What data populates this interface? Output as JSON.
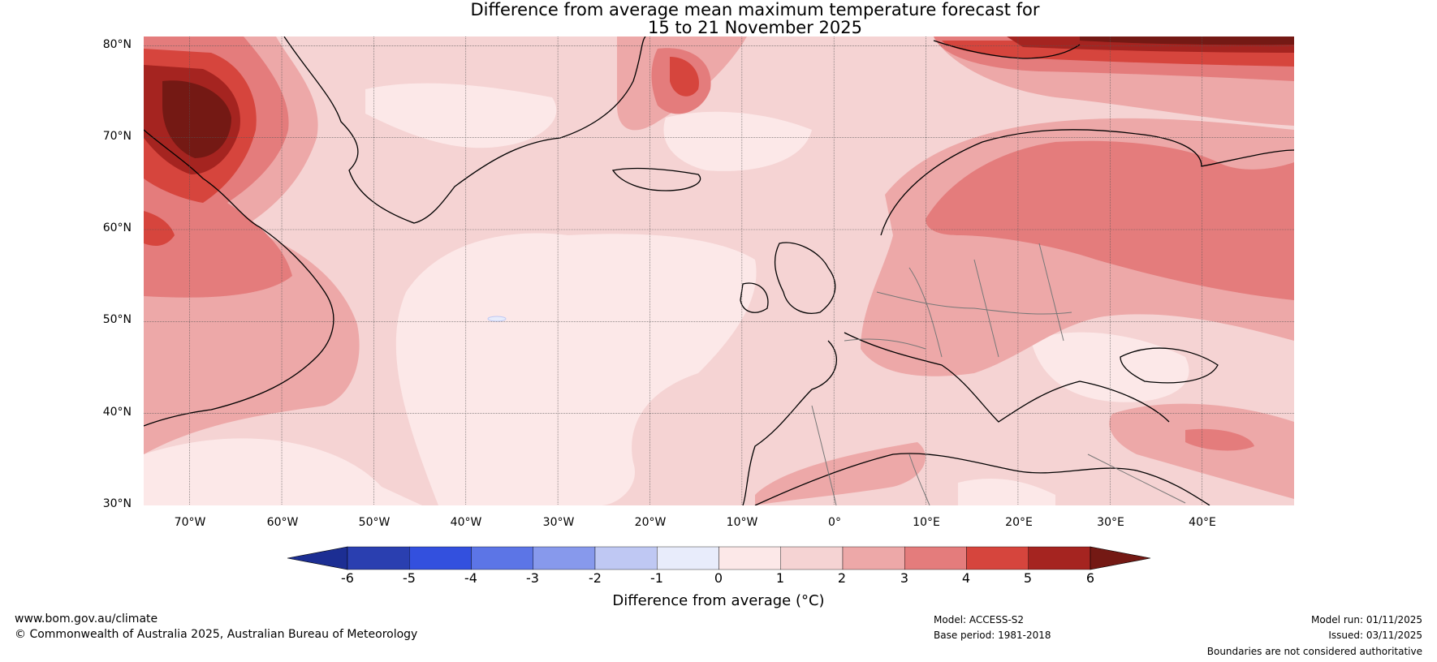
{
  "title_line1": "Difference from average mean maximum temperature forecast for",
  "title_line2": "15 to 21 November 2025",
  "map": {
    "lat_labels": [
      "80°N",
      "70°N",
      "60°N",
      "50°N",
      "40°N",
      "30°N"
    ],
    "lon_labels": [
      "70°W",
      "60°W",
      "50°W",
      "40°W",
      "30°W",
      "20°W",
      "10°W",
      "0°",
      "10°E",
      "20°E",
      "30°E",
      "40°E"
    ],
    "lon_range": [
      -75,
      50
    ],
    "lat_range": [
      30,
      81
    ]
  },
  "colorbar": {
    "ticks": [
      "-6",
      "-5",
      "-4",
      "-3",
      "-2",
      "-1",
      "0",
      "1",
      "2",
      "3",
      "4",
      "5",
      "6"
    ],
    "colors": [
      "#1c2e93",
      "#2a3fb0",
      "#3350de",
      "#5c75e6",
      "#8799ec",
      "#bfc8f3",
      "#e8ecfb",
      "#fce8e8",
      "#f5d3d3",
      "#eda8a8",
      "#e47c7c",
      "#d6453d",
      "#a52420",
      "#741914"
    ],
    "label": "Difference from average (°C)"
  },
  "footer": {
    "website": "www.bom.gov.au/climate",
    "copyright": "© Commonwealth of Australia 2025, Australian Bureau of Meteorology",
    "model": "Model: ACCESS-S2",
    "base_period": "Base period: 1981-2018",
    "model_run": "Model run: 01/11/2025",
    "issued": "Issued: 03/11/2025",
    "disclaimer": "Boundaries are not considered authoritative"
  }
}
